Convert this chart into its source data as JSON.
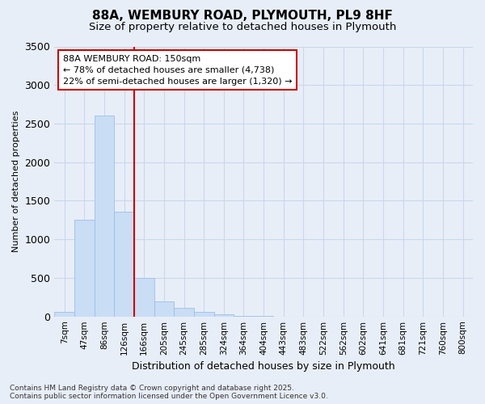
{
  "title_line1": "88A, WEMBURY ROAD, PLYMOUTH, PL9 8HF",
  "title_line2": "Size of property relative to detached houses in Plymouth",
  "xlabel": "Distribution of detached houses by size in Plymouth",
  "ylabel": "Number of detached properties",
  "categories": [
    "7sqm",
    "47sqm",
    "86sqm",
    "126sqm",
    "166sqm",
    "205sqm",
    "245sqm",
    "285sqm",
    "324sqm",
    "364sqm",
    "404sqm",
    "443sqm",
    "483sqm",
    "522sqm",
    "562sqm",
    "602sqm",
    "641sqm",
    "681sqm",
    "721sqm",
    "760sqm",
    "800sqm"
  ],
  "values": [
    55,
    1250,
    2600,
    1360,
    500,
    200,
    110,
    55,
    25,
    8,
    3,
    0,
    0,
    0,
    0,
    0,
    0,
    0,
    0,
    0,
    0
  ],
  "bar_color": "#c9ddf5",
  "bar_edge_color": "#9dbfe8",
  "vline_x_idx": 3.5,
  "annotation_title": "88A WEMBURY ROAD: 150sqm",
  "annotation_line2": "← 78% of detached houses are smaller (4,738)",
  "annotation_line3": "22% of semi-detached houses are larger (1,320) →",
  "annotation_box_facecolor": "#ffffff",
  "annotation_box_edgecolor": "#cc0000",
  "vline_color": "#cc0000",
  "ylim": [
    0,
    3500
  ],
  "yticks": [
    0,
    500,
    1000,
    1500,
    2000,
    2500,
    3000,
    3500
  ],
  "grid_color": "#c8d8ec",
  "background_color": "#e8eef8",
  "footer_line1": "Contains HM Land Registry data © Crown copyright and database right 2025.",
  "footer_line2": "Contains public sector information licensed under the Open Government Licence v3.0."
}
